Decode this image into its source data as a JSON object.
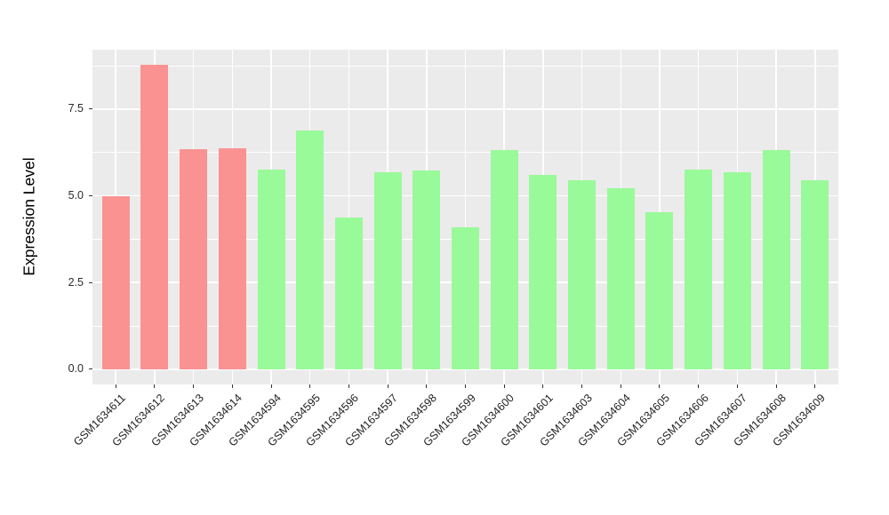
{
  "chart_data": {
    "type": "bar",
    "title": "",
    "xlabel": "",
    "ylabel": "Expression Level",
    "categories": [
      "GSM1634611",
      "GSM1634612",
      "GSM1634613",
      "GSM1634614",
      "GSM1634594",
      "GSM1634595",
      "GSM1634596",
      "GSM1634597",
      "GSM1634598",
      "GSM1634599",
      "GSM1634600",
      "GSM1634601",
      "GSM1634603",
      "GSM1634604",
      "GSM1634605",
      "GSM1634606",
      "GSM1634607",
      "GSM1634608",
      "GSM1634609"
    ],
    "values": [
      4.98,
      8.77,
      6.34,
      6.36,
      5.76,
      6.89,
      4.37,
      5.68,
      5.72,
      4.09,
      6.32,
      5.59,
      5.44,
      5.22,
      4.53,
      5.75,
      5.69,
      6.32,
      5.44
    ],
    "fill": [
      "red",
      "red",
      "red",
      "red",
      "green",
      "green",
      "green",
      "green",
      "green",
      "green",
      "green",
      "green",
      "green",
      "green",
      "green",
      "green",
      "green",
      "green",
      "green"
    ],
    "palette": {
      "red": "#FB9292",
      "green": "#99FA99"
    },
    "yticks": [
      0.0,
      2.5,
      5.0,
      7.5
    ],
    "ytick_labels": [
      "0.0",
      "2.5",
      "5.0",
      "7.5"
    ],
    "yminor": [
      1.25,
      3.75,
      6.25,
      8.75
    ],
    "ylim": [
      -0.44,
      9.21
    ],
    "grid": true,
    "legend": "none",
    "panel_bg": "#EBEBEB",
    "grid_color": "#FFFFFF"
  }
}
